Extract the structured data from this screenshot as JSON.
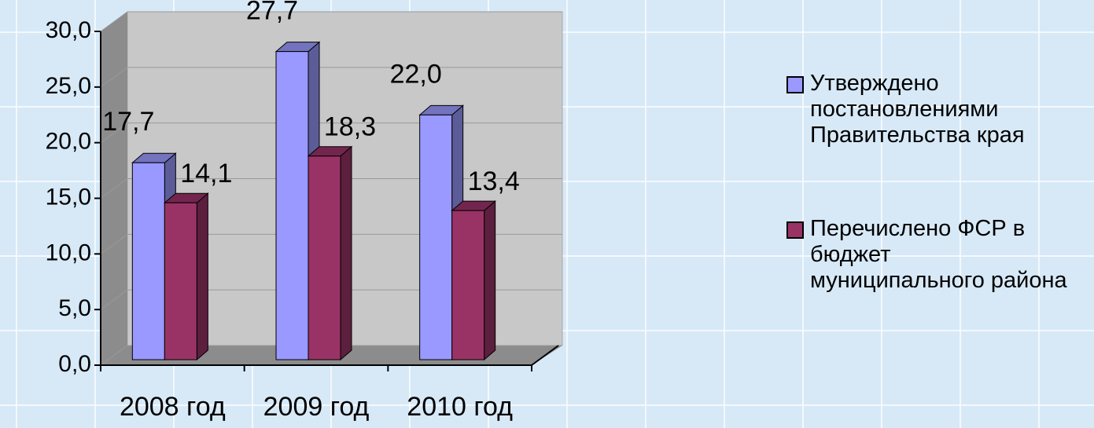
{
  "chart_data": {
    "type": "bar",
    "categories": [
      "2008 год",
      "2009 год",
      "2010 год"
    ],
    "series": [
      {
        "name": "Утверждено постановлениями Правительства края",
        "color": "#9999ff",
        "values": [
          17.7,
          27.7,
          22.0
        ],
        "value_labels": [
          "17,7",
          "27,7",
          "22,0"
        ]
      },
      {
        "name": "Перечислено ФСР в бюджет муниципального района",
        "color": "#993366",
        "values": [
          14.1,
          18.3,
          13.4
        ],
        "value_labels": [
          "14,1",
          "18,3",
          "13,4"
        ]
      }
    ],
    "ylim": [
      0,
      30
    ],
    "yticks": [
      {
        "value": 0,
        "label": "0,0"
      },
      {
        "value": 5,
        "label": "5,0"
      },
      {
        "value": 10,
        "label": "10,0"
      },
      {
        "value": 15,
        "label": "15,0"
      },
      {
        "value": 20,
        "label": "20,0"
      },
      {
        "value": 25,
        "label": "25,0"
      },
      {
        "value": 30,
        "label": "30,0"
      }
    ],
    "grid": true,
    "legend": "right"
  }
}
